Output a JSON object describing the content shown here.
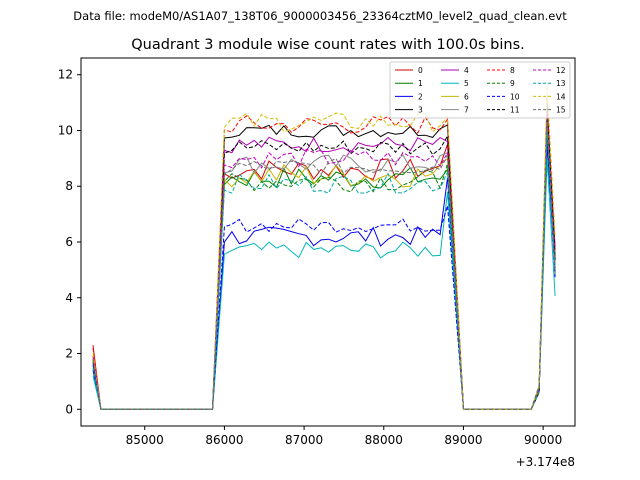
{
  "suptitle": "Data file: modeM0/AS1A07_138T06_9000003456_23364cztM0_level2_quad_clean.evt",
  "chart_data": {
    "type": "line",
    "title": "Quadrant 3 module wise count rates with 100.0s bins.",
    "xlabel": "",
    "ylabel": "",
    "x_offset_label": "+3.174e8",
    "xlim": [
      84200,
      90400
    ],
    "ylim": [
      -0.6,
      12.6
    ],
    "xticks": [
      85000,
      86000,
      87000,
      88000,
      89000,
      90000
    ],
    "xtick_labels": [
      "85000",
      "86000",
      "87000",
      "88000",
      "89000",
      "90000"
    ],
    "yticks": [
      0,
      2,
      4,
      6,
      8,
      10,
      12
    ],
    "ytick_labels": [
      "0",
      "2",
      "4",
      "6",
      "8",
      "10",
      "12"
    ],
    "grid": false,
    "legend_position": "top-right",
    "legend_columns": 4,
    "segments": [
      {
        "start": 84350,
        "end": 85850,
        "levels_at_ends": "rise",
        "n": 16
      },
      {
        "start": 85850,
        "end": 88850,
        "n": 31
      },
      {
        "start": 88850,
        "end": 90150,
        "n": 14
      }
    ],
    "series": [
      {
        "name": "0",
        "color": "#d00000",
        "dash": false,
        "start": 2.3,
        "level": 8.6,
        "final": 9.5,
        "peak": 10.5,
        "ampl": 0.4
      },
      {
        "name": "1",
        "color": "#008000",
        "dash": false,
        "start": 1.7,
        "level": 8.3,
        "final": 8.6,
        "peak": 10.0,
        "ampl": 0.4
      },
      {
        "name": "2",
        "color": "#0000ee",
        "dash": false,
        "start": 1.4,
        "level": 6.2,
        "final": 8.3,
        "peak": 9.5,
        "ampl": 0.35
      },
      {
        "name": "3",
        "color": "#000000",
        "dash": false,
        "start": 1.8,
        "level": 10.0,
        "final": 10.2,
        "peak": 11.0,
        "ampl": 0.25
      },
      {
        "name": "4",
        "color": "#b000b0",
        "dash": false,
        "start": 1.9,
        "level": 9.5,
        "final": 9.6,
        "peak": 10.8,
        "ampl": 0.3
      },
      {
        "name": "5",
        "color": "#00b8b8",
        "dash": false,
        "start": 1.2,
        "level": 5.7,
        "final": 7.8,
        "peak": 9.0,
        "ampl": 0.3
      },
      {
        "name": "6",
        "color": "#c8b400",
        "dash": false,
        "start": 1.9,
        "level": 8.4,
        "final": 9.0,
        "peak": 10.6,
        "ampl": 0.45
      },
      {
        "name": "7",
        "color": "#888888",
        "dash": false,
        "start": 1.7,
        "level": 8.8,
        "final": 9.2,
        "peak": 10.3,
        "ampl": 0.35
      },
      {
        "name": "8",
        "color": "#ff0000",
        "dash": true,
        "start": 2.2,
        "level": 10.2,
        "final": 10.4,
        "peak": 11.3,
        "ampl": 0.35
      },
      {
        "name": "9",
        "color": "#008000",
        "dash": true,
        "start": 1.7,
        "level": 8.2,
        "final": 8.8,
        "peak": 10.0,
        "ampl": 0.4
      },
      {
        "name": "10",
        "color": "#0000ff",
        "dash": true,
        "start": 1.6,
        "level": 6.6,
        "final": 7.3,
        "peak": 9.8,
        "ampl": 0.25
      },
      {
        "name": "11",
        "color": "#000000",
        "dash": true,
        "start": 1.8,
        "level": 9.4,
        "final": 9.8,
        "peak": 10.9,
        "ampl": 0.3
      },
      {
        "name": "12",
        "color": "#c000c0",
        "dash": true,
        "start": 1.9,
        "level": 9.0,
        "final": 9.2,
        "peak": 10.7,
        "ampl": 0.35
      },
      {
        "name": "13",
        "color": "#00a8a8",
        "dash": true,
        "start": 1.5,
        "level": 8.1,
        "final": 8.5,
        "peak": 10.0,
        "ampl": 0.35
      },
      {
        "name": "14",
        "color": "#d0c000",
        "dash": true,
        "start": 2.0,
        "level": 10.3,
        "final": 10.5,
        "peak": 11.6,
        "ampl": 0.35
      },
      {
        "name": "15",
        "color": "#707070",
        "dash": true,
        "start": 1.8,
        "level": 8.7,
        "final": 9.1,
        "peak": 10.4,
        "ampl": 0.3
      }
    ]
  }
}
